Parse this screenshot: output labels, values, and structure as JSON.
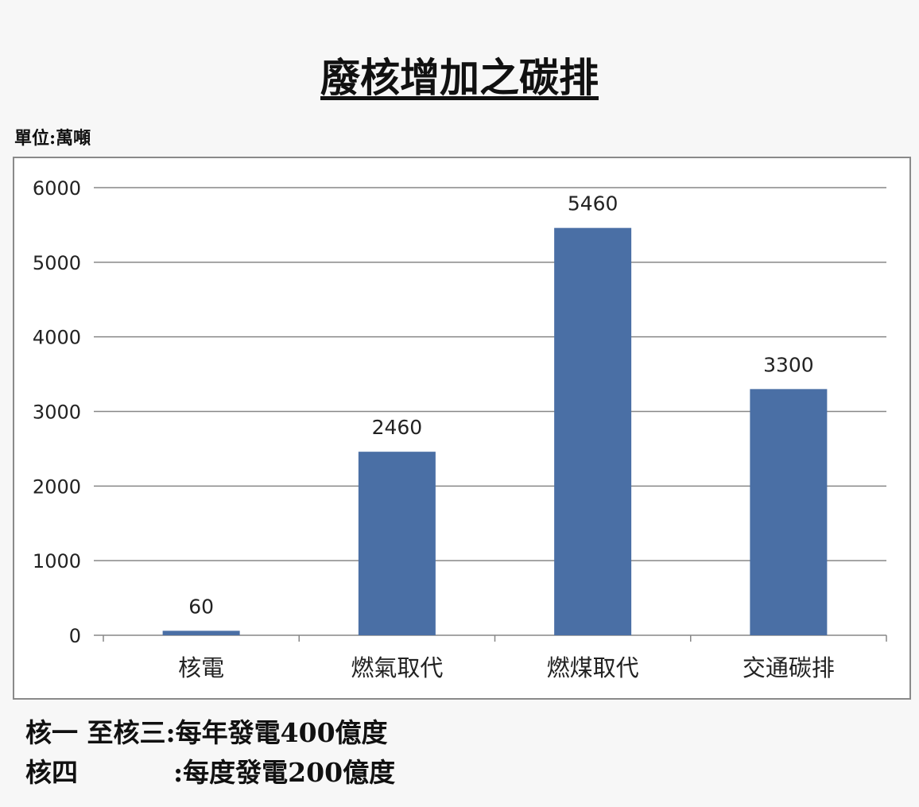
{
  "title": "廢核增加之碳排",
  "unit_label": "單位:萬噸",
  "notes": {
    "line1_label": "核一 至核三:",
    "line1_value": "每年發電400億度",
    "line2_label": "核四",
    "line2_value": ":每度發電200億度"
  },
  "colors": {
    "bar": "#4a6fa5",
    "grid": "#878787",
    "text": "#222222"
  },
  "chart_data": {
    "type": "bar",
    "categories": [
      "核電",
      "燃氣取代",
      "燃煤取代",
      "交通碳排"
    ],
    "values": [
      60,
      2460,
      5460,
      3300
    ],
    "data_labels": [
      "60",
      "2460",
      "5460",
      "3300"
    ],
    "yticks": [
      "0",
      "1000",
      "2000",
      "3000",
      "4000",
      "5000",
      "6000"
    ],
    "ylim": [
      0,
      6000
    ],
    "grid": true,
    "legend": false
  }
}
